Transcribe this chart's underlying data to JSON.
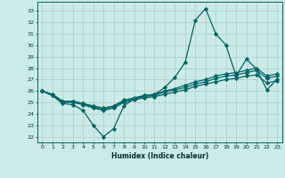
{
  "xlabel": "Humidex (Indice chaleur)",
  "xlim": [
    -0.5,
    23.5
  ],
  "ylim": [
    21.5,
    33.8
  ],
  "yticks": [
    22,
    23,
    24,
    25,
    26,
    27,
    28,
    29,
    30,
    31,
    32,
    33
  ],
  "xticks": [
    0,
    1,
    2,
    3,
    4,
    5,
    6,
    7,
    8,
    9,
    10,
    11,
    12,
    13,
    14,
    15,
    16,
    17,
    18,
    19,
    20,
    21,
    22,
    23
  ],
  "bg_color": "#cceae7",
  "grid_color": "#aacccc",
  "line_color": "#006666",
  "lines": [
    {
      "x": [
        0,
        1,
        2,
        3,
        4,
        5,
        6,
        7,
        8,
        9,
        10,
        11,
        12,
        13,
        14,
        15,
        16,
        17,
        18,
        19,
        20,
        21,
        22,
        23
      ],
      "y": [
        26.0,
        25.6,
        24.9,
        24.8,
        24.3,
        23.0,
        22.0,
        22.7,
        24.7,
        25.3,
        25.6,
        25.7,
        26.3,
        27.2,
        28.5,
        32.2,
        33.2,
        31.0,
        30.0,
        27.3,
        28.8,
        27.9,
        26.1,
        27.0
      ]
    },
    {
      "x": [
        0,
        1,
        2,
        3,
        4,
        5,
        6,
        7,
        8,
        9,
        10,
        11,
        12,
        13,
        14,
        15,
        16,
        17,
        18,
        19,
        20,
        21,
        22,
        23
      ],
      "y": [
        26.0,
        25.6,
        25.0,
        25.0,
        24.8,
        24.5,
        24.3,
        24.5,
        25.0,
        25.2,
        25.4,
        25.5,
        25.7,
        25.9,
        26.1,
        26.4,
        26.6,
        26.8,
        27.0,
        27.1,
        27.3,
        27.4,
        26.7,
        26.9
      ]
    },
    {
      "x": [
        0,
        1,
        2,
        3,
        4,
        5,
        6,
        7,
        8,
        9,
        10,
        11,
        12,
        13,
        14,
        15,
        16,
        17,
        18,
        19,
        20,
        21,
        22,
        23
      ],
      "y": [
        26.0,
        25.7,
        25.1,
        25.1,
        24.9,
        24.6,
        24.4,
        24.6,
        25.1,
        25.3,
        25.5,
        25.6,
        25.9,
        26.1,
        26.3,
        26.6,
        26.8,
        27.1,
        27.3,
        27.4,
        27.6,
        27.8,
        27.1,
        27.3
      ]
    },
    {
      "x": [
        0,
        1,
        2,
        3,
        4,
        5,
        6,
        7,
        8,
        9,
        10,
        11,
        12,
        13,
        14,
        15,
        16,
        17,
        18,
        19,
        20,
        21,
        22,
        23
      ],
      "y": [
        26.0,
        25.7,
        25.1,
        25.1,
        24.9,
        24.7,
        24.5,
        24.7,
        25.2,
        25.4,
        25.6,
        25.7,
        26.0,
        26.2,
        26.5,
        26.8,
        27.0,
        27.3,
        27.5,
        27.6,
        27.8,
        28.0,
        27.3,
        27.5
      ]
    }
  ]
}
